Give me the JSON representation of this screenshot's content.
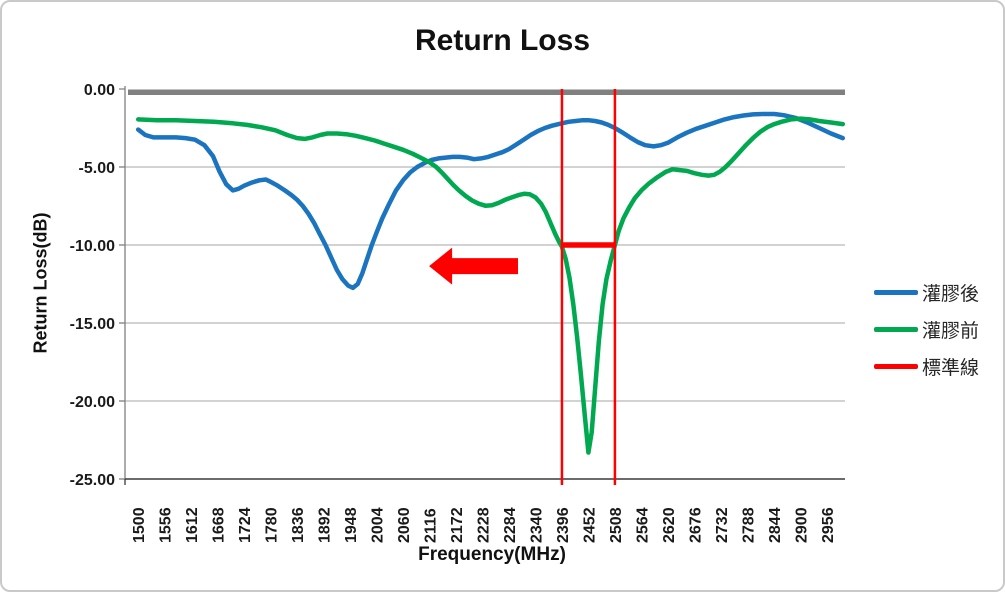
{
  "chart_data": {
    "type": "line",
    "title": "Return Loss",
    "xlabel": "Frequency(MHz)",
    "ylabel": "Return Loss(dB)",
    "x_start": 1500,
    "x_step": 56,
    "x_count": 27,
    "x_tick_labels": [
      "1500",
      "1556",
      "1612",
      "1668",
      "1724",
      "1780",
      "1836",
      "1892",
      "1948",
      "2004",
      "2060",
      "2116",
      "2172",
      "2228",
      "2284",
      "2340",
      "2396",
      "2452",
      "2508",
      "2564",
      "2620",
      "2676",
      "2732",
      "2788",
      "2844",
      "2900",
      "2956"
    ],
    "ylim": [
      -25,
      0
    ],
    "y_ticks": [
      0,
      -5,
      -10,
      -15,
      -20,
      -25
    ],
    "y_tick_labels": [
      "0.00",
      "-5.00",
      "-10.00",
      "-15.00",
      "-20.00",
      "-25.00"
    ],
    "grid": true,
    "legend_position": "right",
    "colors": {
      "after_potting_blue": "#1B74BF",
      "before_potting_green": "#00A850",
      "standard_red": "#FF0000",
      "zero_bar_gray": "#808080",
      "gridline_gray": "#A6A6A6"
    },
    "legend": [
      {
        "id": "after-potting",
        "label": "灌膠後",
        "color": "#1B74BF"
      },
      {
        "id": "before-potting",
        "label": "灌膠前",
        "color": "#00A850"
      },
      {
        "id": "standard-line",
        "label": "標準線",
        "color": "#FF0000"
      }
    ],
    "series": [
      {
        "id": "after-potting",
        "name": "灌膠後",
        "color": "#1B74BF",
        "points": [
          [
            1500,
            -2.6
          ],
          [
            1515,
            -2.95
          ],
          [
            1532,
            -3.1
          ],
          [
            1556,
            -3.1
          ],
          [
            1580,
            -3.1
          ],
          [
            1600,
            -3.15
          ],
          [
            1620,
            -3.25
          ],
          [
            1640,
            -3.6
          ],
          [
            1658,
            -4.3
          ],
          [
            1672,
            -5.3
          ],
          [
            1686,
            -6.1
          ],
          [
            1700,
            -6.5
          ],
          [
            1712,
            -6.4
          ],
          [
            1724,
            -6.2
          ],
          [
            1740,
            -6.0
          ],
          [
            1756,
            -5.85
          ],
          [
            1770,
            -5.8
          ],
          [
            1780,
            -5.95
          ],
          [
            1795,
            -6.2
          ],
          [
            1810,
            -6.5
          ],
          [
            1824,
            -6.8
          ],
          [
            1836,
            -7.1
          ],
          [
            1848,
            -7.5
          ],
          [
            1860,
            -8.0
          ],
          [
            1872,
            -8.6
          ],
          [
            1884,
            -9.3
          ],
          [
            1896,
            -10.0
          ],
          [
            1908,
            -10.8
          ],
          [
            1920,
            -11.6
          ],
          [
            1932,
            -12.2
          ],
          [
            1944,
            -12.6
          ],
          [
            1954,
            -12.75
          ],
          [
            1964,
            -12.5
          ],
          [
            1974,
            -11.8
          ],
          [
            1984,
            -10.9
          ],
          [
            1994,
            -10.0
          ],
          [
            2004,
            -9.2
          ],
          [
            2016,
            -8.3
          ],
          [
            2030,
            -7.4
          ],
          [
            2045,
            -6.5
          ],
          [
            2060,
            -5.85
          ],
          [
            2075,
            -5.35
          ],
          [
            2090,
            -5.0
          ],
          [
            2105,
            -4.75
          ],
          [
            2120,
            -4.55
          ],
          [
            2135,
            -4.45
          ],
          [
            2150,
            -4.4
          ],
          [
            2165,
            -4.35
          ],
          [
            2180,
            -4.35
          ],
          [
            2195,
            -4.4
          ],
          [
            2210,
            -4.5
          ],
          [
            2225,
            -4.45
          ],
          [
            2240,
            -4.35
          ],
          [
            2255,
            -4.2
          ],
          [
            2270,
            -4.05
          ],
          [
            2284,
            -3.85
          ],
          [
            2300,
            -3.55
          ],
          [
            2315,
            -3.25
          ],
          [
            2330,
            -2.95
          ],
          [
            2345,
            -2.7
          ],
          [
            2360,
            -2.5
          ],
          [
            2375,
            -2.35
          ],
          [
            2396,
            -2.2
          ],
          [
            2410,
            -2.1
          ],
          [
            2425,
            -2.05
          ],
          [
            2440,
            -2.0
          ],
          [
            2452,
            -2.0
          ],
          [
            2466,
            -2.05
          ],
          [
            2480,
            -2.15
          ],
          [
            2494,
            -2.3
          ],
          [
            2508,
            -2.5
          ],
          [
            2522,
            -2.75
          ],
          [
            2540,
            -3.1
          ],
          [
            2556,
            -3.4
          ],
          [
            2572,
            -3.6
          ],
          [
            2590,
            -3.68
          ],
          [
            2605,
            -3.6
          ],
          [
            2620,
            -3.45
          ],
          [
            2640,
            -3.1
          ],
          [
            2660,
            -2.8
          ],
          [
            2680,
            -2.55
          ],
          [
            2700,
            -2.35
          ],
          [
            2720,
            -2.15
          ],
          [
            2740,
            -1.95
          ],
          [
            2760,
            -1.8
          ],
          [
            2780,
            -1.7
          ],
          [
            2800,
            -1.63
          ],
          [
            2820,
            -1.6
          ],
          [
            2845,
            -1.6
          ],
          [
            2865,
            -1.68
          ],
          [
            2890,
            -1.85
          ],
          [
            2915,
            -2.15
          ],
          [
            2940,
            -2.5
          ],
          [
            2965,
            -2.85
          ],
          [
            2990,
            -3.15
          ]
        ]
      },
      {
        "id": "before-potting",
        "name": "灌膠前",
        "color": "#00A850",
        "points": [
          [
            1500,
            -1.95
          ],
          [
            1540,
            -2.0
          ],
          [
            1580,
            -2.0
          ],
          [
            1620,
            -2.05
          ],
          [
            1660,
            -2.1
          ],
          [
            1700,
            -2.2
          ],
          [
            1730,
            -2.3
          ],
          [
            1760,
            -2.45
          ],
          [
            1790,
            -2.65
          ],
          [
            1815,
            -2.95
          ],
          [
            1836,
            -3.15
          ],
          [
            1852,
            -3.2
          ],
          [
            1868,
            -3.1
          ],
          [
            1885,
            -2.95
          ],
          [
            1900,
            -2.85
          ],
          [
            1920,
            -2.85
          ],
          [
            1940,
            -2.9
          ],
          [
            1960,
            -3.0
          ],
          [
            1980,
            -3.15
          ],
          [
            2000,
            -3.3
          ],
          [
            2020,
            -3.5
          ],
          [
            2040,
            -3.7
          ],
          [
            2060,
            -3.9
          ],
          [
            2080,
            -4.15
          ],
          [
            2100,
            -4.45
          ],
          [
            2116,
            -4.7
          ],
          [
            2130,
            -5.0
          ],
          [
            2142,
            -5.35
          ],
          [
            2154,
            -5.75
          ],
          [
            2166,
            -6.15
          ],
          [
            2178,
            -6.5
          ],
          [
            2192,
            -6.85
          ],
          [
            2206,
            -7.15
          ],
          [
            2220,
            -7.35
          ],
          [
            2234,
            -7.48
          ],
          [
            2248,
            -7.45
          ],
          [
            2262,
            -7.3
          ],
          [
            2276,
            -7.1
          ],
          [
            2290,
            -6.95
          ],
          [
            2304,
            -6.8
          ],
          [
            2316,
            -6.72
          ],
          [
            2328,
            -6.75
          ],
          [
            2340,
            -6.95
          ],
          [
            2352,
            -7.35
          ],
          [
            2362,
            -7.9
          ],
          [
            2372,
            -8.6
          ],
          [
            2382,
            -9.3
          ],
          [
            2390,
            -9.8
          ],
          [
            2396,
            -10.1
          ],
          [
            2404,
            -10.9
          ],
          [
            2412,
            -12.1
          ],
          [
            2420,
            -13.8
          ],
          [
            2428,
            -15.9
          ],
          [
            2436,
            -18.3
          ],
          [
            2444,
            -20.8
          ],
          [
            2452,
            -23.3
          ],
          [
            2459,
            -22.0
          ],
          [
            2466,
            -19.3
          ],
          [
            2474,
            -16.2
          ],
          [
            2482,
            -13.8
          ],
          [
            2490,
            -12.2
          ],
          [
            2499,
            -11.0
          ],
          [
            2508,
            -10.0
          ],
          [
            2516,
            -9.1
          ],
          [
            2526,
            -8.3
          ],
          [
            2538,
            -7.6
          ],
          [
            2550,
            -7.0
          ],
          [
            2564,
            -6.5
          ],
          [
            2580,
            -6.05
          ],
          [
            2598,
            -5.65
          ],
          [
            2616,
            -5.3
          ],
          [
            2630,
            -5.15
          ],
          [
            2645,
            -5.2
          ],
          [
            2660,
            -5.25
          ],
          [
            2676,
            -5.4
          ],
          [
            2692,
            -5.5
          ],
          [
            2706,
            -5.55
          ],
          [
            2718,
            -5.5
          ],
          [
            2730,
            -5.3
          ],
          [
            2742,
            -5.0
          ],
          [
            2755,
            -4.6
          ],
          [
            2770,
            -4.1
          ],
          [
            2785,
            -3.6
          ],
          [
            2800,
            -3.15
          ],
          [
            2815,
            -2.75
          ],
          [
            2830,
            -2.45
          ],
          [
            2845,
            -2.25
          ],
          [
            2860,
            -2.1
          ],
          [
            2880,
            -1.95
          ],
          [
            2900,
            -1.9
          ],
          [
            2920,
            -1.95
          ],
          [
            2940,
            -2.05
          ],
          [
            2965,
            -2.15
          ],
          [
            2990,
            -2.25
          ]
        ]
      }
    ],
    "annotations": {
      "zero_bar": {
        "level_dB": 0,
        "color": "#808080"
      },
      "standard_band": {
        "x1_MHz": 2396,
        "x2_MHz": 2508,
        "level_dB": -10,
        "color": "#FF0000"
      },
      "arrow": {
        "direction": "left",
        "color": "#FF0000",
        "x_tail_MHz": 2303,
        "x_tip_MHz": 2115,
        "y_dB": -11.35
      }
    }
  }
}
